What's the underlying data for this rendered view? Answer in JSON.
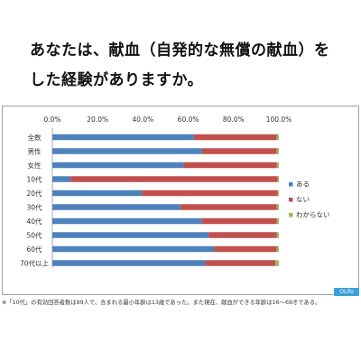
{
  "title_line1": "あなたは、献血（自発的な無償の献血）を",
  "title_line2": "した経験がありますか。",
  "footnote": "※「10代」の有効回答者数は99人で、含まれる最小年齢は13歳であった。また現在、献血ができる年齢は16～69才である。",
  "logo_text": "OLifo",
  "colors": {
    "aru": "#4f81bd",
    "nai": "#c0504d",
    "wakaranai": "#9bbb59"
  },
  "chart_data": {
    "type": "bar",
    "orientation": "horizontal",
    "stacked": "percent",
    "categories": [
      "全数",
      "男性",
      "女性",
      "10代",
      "20代",
      "30代",
      "40代",
      "50代",
      "60代",
      "70代以上"
    ],
    "series": [
      {
        "name": "ある",
        "values": [
          62.5,
          66.0,
          58.0,
          8.0,
          39.5,
          56.5,
          66.0,
          69.0,
          71.5,
          67.5
        ]
      },
      {
        "name": "ない",
        "values": [
          36.5,
          33.0,
          41.0,
          91.5,
          60.0,
          42.5,
          33.0,
          30.0,
          27.5,
          31.0
        ]
      },
      {
        "name": "わからない",
        "values": [
          1.0,
          1.0,
          1.0,
          0.5,
          0.5,
          1.0,
          1.0,
          1.0,
          1.0,
          1.5
        ]
      }
    ],
    "x_ticks": [
      "0.0%",
      "20.0%",
      "40.0%",
      "60.0%",
      "80.0%",
      "100.0%"
    ],
    "xlim": [
      0,
      100
    ],
    "grid": false,
    "legend_position": "right"
  }
}
